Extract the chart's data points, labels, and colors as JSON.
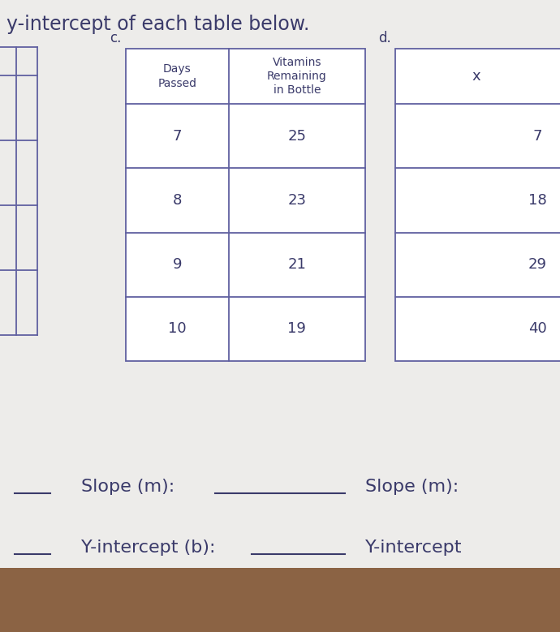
{
  "bg_color": "#d8d5d0",
  "paper_color": "#edecea",
  "title_text": "y-intercept of each table below.",
  "title_color": "#2a2a4a",
  "label_c": "c.",
  "label_d": "d.",
  "table_c_headers": [
    "Days\nPassed",
    "Vitamins\nRemaining\nin Bottle"
  ],
  "table_c_rows": [
    [
      "7",
      "25"
    ],
    [
      "8",
      "23"
    ],
    [
      "9",
      "21"
    ],
    [
      "10",
      "19"
    ]
  ],
  "table_d_header": "x",
  "table_d_rows": [
    "7",
    "18",
    "29",
    "40"
  ],
  "slope_label": "Slope (m):",
  "slope_label_d": "Slope (m):",
  "yint_label": "Y-intercept (b):",
  "yint_label_d": "Y-intercept",
  "text_color": "#3a3a6a",
  "table_border_color": "#6060a0",
  "underline_color": "#3a3a6a",
  "left_box_color": "#6060a0"
}
